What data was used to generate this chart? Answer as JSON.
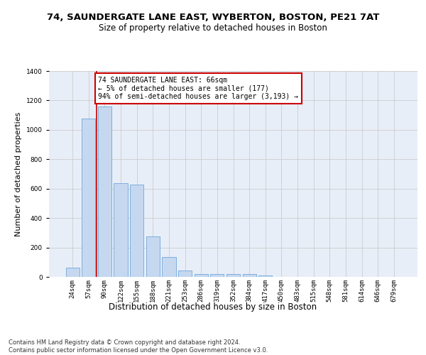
{
  "title_line1": "74, SAUNDERGATE LANE EAST, WYBERTON, BOSTON, PE21 7AT",
  "title_line2": "Size of property relative to detached houses in Boston",
  "xlabel": "Distribution of detached houses by size in Boston",
  "ylabel": "Number of detached properties",
  "categories": [
    "24sqm",
    "57sqm",
    "90sqm",
    "122sqm",
    "155sqm",
    "188sqm",
    "221sqm",
    "253sqm",
    "286sqm",
    "319sqm",
    "352sqm",
    "384sqm",
    "417sqm",
    "450sqm",
    "483sqm",
    "515sqm",
    "548sqm",
    "581sqm",
    "614sqm",
    "646sqm",
    "679sqm"
  ],
  "values": [
    62,
    1075,
    1160,
    635,
    630,
    275,
    135,
    45,
    20,
    20,
    20,
    20,
    12,
    0,
    0,
    0,
    0,
    0,
    0,
    0,
    0
  ],
  "bar_color": "#c5d8f0",
  "bar_edge_color": "#5b9bd5",
  "grid_color": "#cccccc",
  "background_color": "#e8eef8",
  "annotation_text": "74 SAUNDERGATE LANE EAST: 66sqm\n← 5% of detached houses are smaller (177)\n94% of semi-detached houses are larger (3,193) →",
  "annotation_box_color": "#ffffff",
  "annotation_border_color": "#cc0000",
  "redline_x": 1.5,
  "ylim": [
    0,
    1400
  ],
  "yticks": [
    0,
    200,
    400,
    600,
    800,
    1000,
    1200,
    1400
  ],
  "footer_text": "Contains HM Land Registry data © Crown copyright and database right 2024.\nContains public sector information licensed under the Open Government Licence v3.0.",
  "title_fontsize": 9.5,
  "subtitle_fontsize": 8.5,
  "axis_label_fontsize": 8,
  "tick_fontsize": 6.5,
  "annotation_fontsize": 7,
  "footer_fontsize": 6
}
